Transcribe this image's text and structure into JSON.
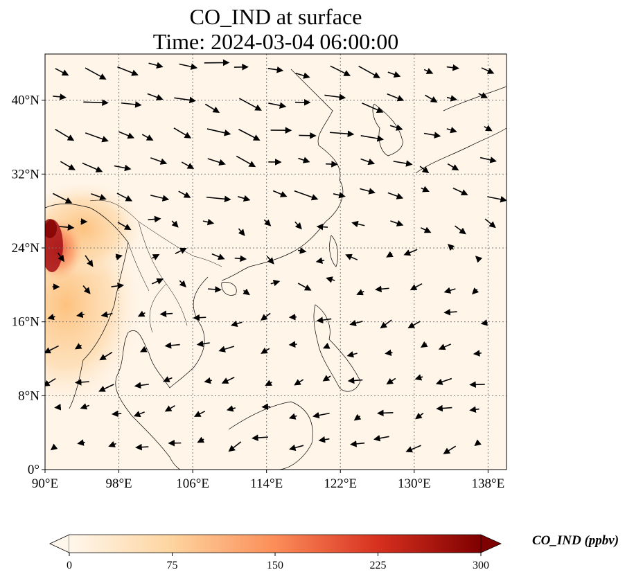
{
  "title": {
    "line1": "CO_IND at surface",
    "line2": "Time: 2024-03-04 06:00:00"
  },
  "map": {
    "lon_range": [
      90,
      140
    ],
    "lat_range": [
      0,
      45
    ],
    "lon_ticks": [
      {
        "value": 90,
        "label": "90°E"
      },
      {
        "value": 98,
        "label": "98°E"
      },
      {
        "value": 106,
        "label": "106°E"
      },
      {
        "value": 114,
        "label": "114°E"
      },
      {
        "value": 122,
        "label": "122°E"
      },
      {
        "value": 130,
        "label": "130°E"
      },
      {
        "value": 138,
        "label": "138°E"
      }
    ],
    "lat_ticks": [
      {
        "value": 0,
        "label": "0°"
      },
      {
        "value": 8,
        "label": "8°N"
      },
      {
        "value": 16,
        "label": "16°N"
      },
      {
        "value": 24,
        "label": "24°N"
      },
      {
        "value": 32,
        "label": "32°N"
      },
      {
        "value": 40,
        "label": "40°N"
      }
    ],
    "gridlines": true,
    "variable": "CO_IND",
    "unit": "ppbv",
    "wind_vectors": true
  },
  "colorbar": {
    "label": "CO_IND (ppbv)",
    "min": 0,
    "max": 300,
    "extend": "both",
    "ticks": [
      {
        "value": 0,
        "label": "0"
      },
      {
        "value": 75,
        "label": "75"
      },
      {
        "value": 150,
        "label": "150"
      },
      {
        "value": 225,
        "label": "225"
      },
      {
        "value": 300,
        "label": "300"
      }
    ],
    "colors": [
      "#fff7ec",
      "#fdd49e",
      "#fc8d59",
      "#d7301f",
      "#7f0000"
    ]
  }
}
